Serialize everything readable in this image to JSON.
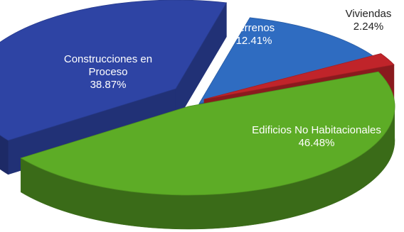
{
  "chart_data": {
    "type": "pie",
    "style": "3d-exploded",
    "title": "",
    "series": [
      {
        "values": [
          46.48,
          38.87,
          12.41,
          2.24
        ],
        "categories": [
          "Edificios No Habitacionales",
          "Construcciones en Proceso",
          "Terrenos",
          "Viviendas"
        ]
      }
    ],
    "slices": [
      {
        "key": "edificios",
        "name_lines": [
          "Edificios No Habitacionales"
        ],
        "pct": "46.48%",
        "value": 46.48,
        "color": "#5dac26",
        "label_color": "#ffffff"
      },
      {
        "key": "construcciones",
        "name_lines": [
          "Construcciones en",
          "Proceso"
        ],
        "pct": "38.87%",
        "value": 38.87,
        "color": "#2e44a4",
        "label_color": "#ffffff"
      },
      {
        "key": "terrenos",
        "name_lines": [
          "Terrenos"
        ],
        "pct": "12.41%",
        "value": 12.41,
        "color": "#2f6cc1",
        "label_color": "#ffffff"
      },
      {
        "key": "viviendas",
        "name_lines": [
          "Viviendas"
        ],
        "pct": "2.24%",
        "value": 2.24,
        "color": "#c0242a",
        "label_color": "#222222"
      }
    ]
  }
}
